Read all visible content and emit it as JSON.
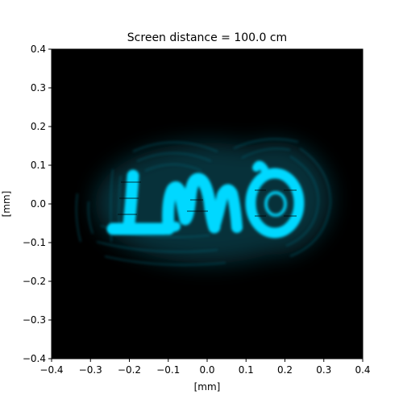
{
  "chart_data": {
    "type": "heatmap",
    "title": "Screen distance = 100.0 cm",
    "xlabel": "[mm]",
    "ylabel": "[mm]",
    "xlim": [
      -0.4,
      0.4
    ],
    "ylim": [
      -0.4,
      0.4
    ],
    "xticks": [
      -0.4,
      -0.3,
      -0.2,
      -0.1,
      0.0,
      0.1,
      0.2,
      0.3,
      0.4
    ],
    "yticks": [
      -0.4,
      -0.3,
      -0.2,
      -0.1,
      0.0,
      0.1,
      0.2,
      0.3,
      0.4
    ],
    "xtick_labels": [
      "−0.4",
      "−0.3",
      "−0.2",
      "−0.1",
      "0.0",
      "0.1",
      "0.2",
      "0.3",
      "0.4"
    ],
    "ytick_labels": [
      "−0.4",
      "−0.3",
      "−0.2",
      "−0.1",
      "0.0",
      "0.1",
      "0.2",
      "0.3",
      "0.4"
    ],
    "grid": false,
    "colors": {
      "background": "#000000",
      "intensity": "#00d8ff",
      "fringe": "#0a5a6a"
    }
  }
}
